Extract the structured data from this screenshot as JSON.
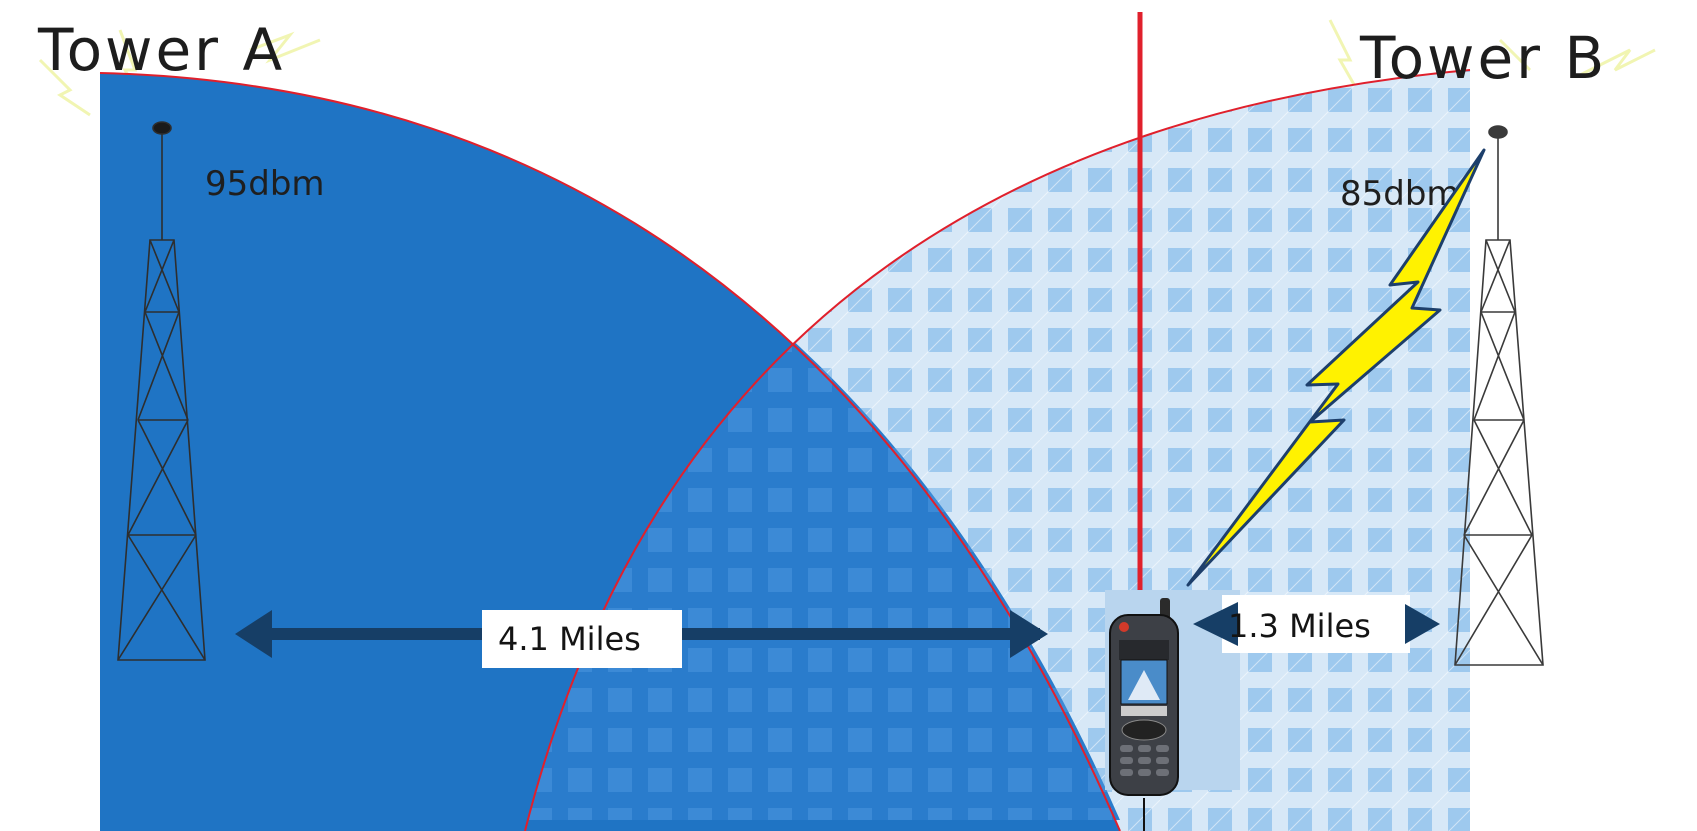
{
  "tower_a": {
    "title": "Tower A",
    "signal": "95dbm",
    "distance": "4.1 Miles"
  },
  "tower_b": {
    "title": "Tower B",
    "signal": "85dbm",
    "distance": "1.3 Miles"
  },
  "colors": {
    "zone_a": "#1f74c4",
    "zone_b_light": "#cfe3f5",
    "zone_b_grid": "#8fc0ea",
    "boundary_line": "#e0202c",
    "arrow": "#163e66",
    "lightning": "#fff200",
    "tower_lines": "#3a3a3a"
  },
  "icons": {
    "tower_a": "cell-tower-icon",
    "tower_b": "cell-tower-icon",
    "phone": "mobile-phone-icon",
    "lightning": "lightning-bolt-icon"
  }
}
